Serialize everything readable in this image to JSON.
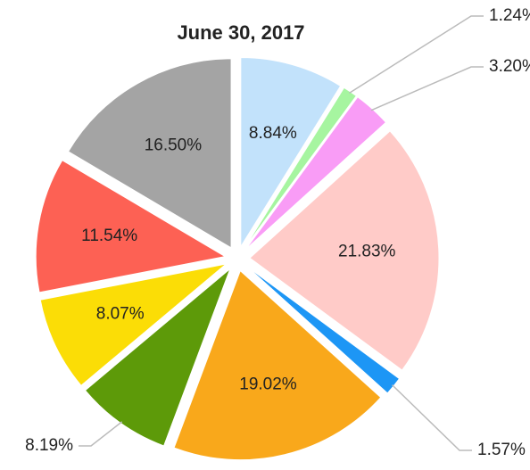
{
  "chart_data": {
    "type": "pie",
    "title": "June 30, 2017",
    "values": [
      8.84,
      1.24,
      3.2,
      21.83,
      1.57,
      19.02,
      8.19,
      8.07,
      11.54,
      16.5
    ],
    "value_labels": [
      "8.84%",
      "1.24%",
      "3.20%",
      "21.83%",
      "1.57%",
      "19.02%",
      "8.19%",
      "8.07%",
      "11.54%",
      "16.50%"
    ],
    "colors": [
      "#c2e2fb",
      "#a6f5a0",
      "#f99cf6",
      "#ffcbc8",
      "#1d96f5",
      "#f9a81b",
      "#5d9a09",
      "#fbdd06",
      "#fd6154",
      "#a4a4a4"
    ]
  }
}
